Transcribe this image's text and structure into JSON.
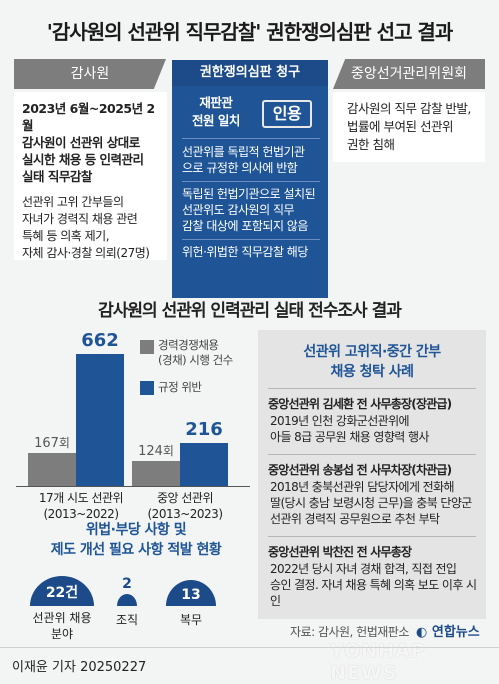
{
  "title": "'감사원의 선관위 직무감찰' 권한쟁의심판 선고 결과",
  "header": {
    "left": "감사원",
    "mid": "권한쟁의심판 청구",
    "right": "중앙선거관리위원회"
  },
  "left_box": {
    "p1": [
      "2023년 6월~2025년 2월",
      "감사원이 선관위 상대로",
      "실시한 채용 등 인력관리",
      "실태 직무감찰"
    ],
    "p2": [
      "선관위 고위 간부들의",
      "자녀가 경력직 채용 관련",
      "특혜 등 의혹 제기,",
      "자체 감사·경찰 의뢰(27명)"
    ]
  },
  "right_box": {
    "lines": [
      "감사원의 직무 감찰 반발,",
      "법률에 부여된 선관위",
      "권한 침해"
    ]
  },
  "mid_box": {
    "stamp_label": [
      "재판관",
      "전원 일치"
    ],
    "stamp": "인용",
    "items": [
      [
        "선관위를 독립적 헌법기관",
        "으로 규정한 의사에 반함"
      ],
      [
        "독립된 헌법기관으로 설치된",
        "선관위도 감사원의 직무",
        "감찰 대상에 포함되지 않음"
      ],
      [
        "위헌·위법한 직무감찰 해당"
      ]
    ]
  },
  "section2_title": "감사원의 선관위 인력관리 실태 전수조사 결과",
  "chart_data": {
    "type": "bar",
    "categories": [
      [
        "17개 시도 선관위",
        "(2013~2022)"
      ],
      [
        "중앙 선관위",
        "(2013~2023)"
      ]
    ],
    "series": [
      {
        "name": "경력경쟁채용(경채) 시행 건수",
        "values": [
          167,
          124
        ],
        "label_unit": "회",
        "color": "#7d7d7d"
      },
      {
        "name": "규정 위반",
        "values": [
          662,
          216
        ],
        "label_unit": "건",
        "color": "#1f5597"
      }
    ],
    "legend": {
      "entries": [
        [
          "경력경쟁채용",
          "(경채) 시행 건수"
        ],
        [
          "규정 위반"
        ]
      ],
      "position": "top-right"
    },
    "ylim": [
      0,
      700
    ]
  },
  "findings": {
    "title": [
      "위법·부당 사항 및",
      "제도 개선 필요 사항 적발 현황"
    ],
    "items": [
      {
        "value": 22,
        "unit": "건",
        "label": [
          "선관위 채용",
          "분야"
        ]
      },
      {
        "value": 2,
        "unit": "",
        "label": [
          "조직"
        ]
      },
      {
        "value": 13,
        "unit": "",
        "label": [
          "복무"
        ]
      }
    ]
  },
  "right_panel": {
    "title": [
      "선관위 고위직·중간 간부",
      "채용 청탁 사례"
    ],
    "cases": [
      {
        "head": "중앙선관위 김세환 전 사무총장(장관급)",
        "body": [
          "2019년 인천 강화군선관위에",
          "아들 8급 공무원 채용 영향력 행사"
        ]
      },
      {
        "head": "중앙선관위 송봉섭 전 사무차장(차관급)",
        "body": [
          "2018년 충북선관위 담당자에게 전화해",
          "딸(당시 충남 보령시청 근무)을 충북 단양군",
          "선관위 경력직 공무원으로 추천 부탁"
        ]
      },
      {
        "head": "중앙선관위 박찬진 전 사무총장",
        "body": [
          "2022년 당시 자녀 경채 합격, 직접 전입",
          "승인 결정. 자녀 채용 특혜 의혹 보도 이후 시인"
        ]
      }
    ]
  },
  "source": "자료: 감사원, 헌법재판소",
  "logo": "연합뉴스",
  "watermark": "YONHAP NEWS",
  "footer": "이재윤 기자  20250227",
  "colors": {
    "navy": "#1d4b89",
    "blue": "#1f5597",
    "gray": "#7d7d7d"
  }
}
